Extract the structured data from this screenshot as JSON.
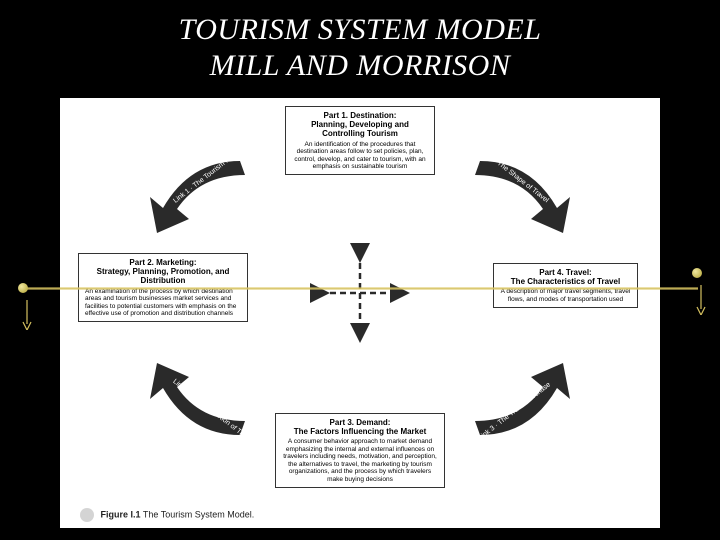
{
  "title_line1": "TOURISM SYSTEM MODEL",
  "title_line2": "MILL AND MORRISON",
  "colors": {
    "bg": "#000000",
    "title": "#ffffff",
    "panel_bg": "#ffffff",
    "panel_border": "#333333",
    "arrow_fill": "#2a2a2a",
    "arrow_text": "#ffffff",
    "gold": "#d4c060"
  },
  "panels": {
    "top": {
      "heading": "Part 1. Destination:\nPlanning, Developing and Controlling Tourism",
      "body": "An identification of the procedures that destination areas follow to set policies, plan, control, develop, and cater to tourism, with an emphasis on sustainable tourism"
    },
    "left": {
      "heading": "Part 2. Marketing:\nStrategy, Planning, Promotion, and Distribution",
      "body": "An examination of the process by which destination areas and tourism businesses market services and facilities to potential customers with emphasis on the effective use of promotion and distribution channels"
    },
    "right": {
      "heading": "Part 4. Travel:\nThe Characteristics of Travel",
      "body": "A description of major travel segments, travel flows, and modes of transportation used"
    },
    "bottom": {
      "heading": "Part 3. Demand:\nThe Factors Influencing the Market",
      "body": "A consumer behavior approach to market demand emphasizing the internal and external influences on travelers including needs, motivation, and perception, the alternatives to travel, the marketing by tourism organizations, and the process by which travelers make buying decisions"
    }
  },
  "links": {
    "link1": "Link 1 · The Tourism Product",
    "link2": "Link 2 · The Promotion of Travel",
    "link3": "Link 3 · The Travel Purchase",
    "link4": "Link 4 · The Shape of Travel"
  },
  "figure": {
    "number": "Figure I.1",
    "caption": "The Tourism System Model."
  }
}
